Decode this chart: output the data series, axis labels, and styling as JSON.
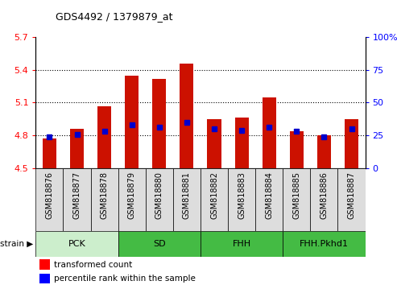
{
  "title": "GDS4492 / 1379879_at",
  "samples": [
    "GSM818876",
    "GSM818877",
    "GSM818878",
    "GSM818879",
    "GSM818880",
    "GSM818881",
    "GSM818882",
    "GSM818883",
    "GSM818884",
    "GSM818885",
    "GSM818886",
    "GSM818887"
  ],
  "transformed_count": [
    4.77,
    4.86,
    5.07,
    5.35,
    5.32,
    5.46,
    4.95,
    4.96,
    5.15,
    4.84,
    4.8,
    4.95
  ],
  "percentile_rank": [
    24,
    26,
    28,
    33,
    31,
    35,
    30,
    29,
    31,
    28,
    24,
    30
  ],
  "y_min": 4.5,
  "y_max": 5.7,
  "y_ticks": [
    4.5,
    4.8,
    5.1,
    5.4,
    5.7
  ],
  "y_tick_labels": [
    "4.5",
    "4.8",
    "5.1",
    "5.4",
    "5.7"
  ],
  "right_y_ticks": [
    0,
    25,
    50,
    75,
    100
  ],
  "right_y_tick_labels": [
    "0",
    "25",
    "50",
    "75",
    "100%"
  ],
  "bar_color": "#cc1100",
  "dot_color": "#0000cc",
  "strain_groups": [
    {
      "label": "PCK",
      "start": 0,
      "end": 2,
      "color": "#cceecc"
    },
    {
      "label": "SD",
      "start": 3,
      "end": 5,
      "color": "#44bb44"
    },
    {
      "label": "FHH",
      "start": 6,
      "end": 8,
      "color": "#44bb44"
    },
    {
      "label": "FHH.Pkhd1",
      "start": 9,
      "end": 11,
      "color": "#44bb44"
    }
  ],
  "legend_red_label": "transformed count",
  "legend_blue_label": "percentile rank within the sample",
  "bar_width": 0.5,
  "xtick_bg_color": "#dddddd"
}
